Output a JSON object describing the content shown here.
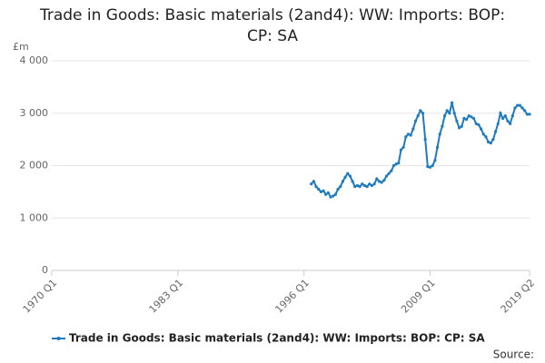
{
  "chart_data": {
    "type": "line",
    "title": "Trade in Goods: Basic materials (2and4): WW: Imports: BOP: CP: SA",
    "y_unit": "£m",
    "source": "Source:",
    "categories": [
      "1970 Q1",
      null,
      null,
      null,
      null,
      null,
      null,
      null,
      null,
      null,
      null,
      null,
      null,
      null,
      null,
      null,
      null,
      null,
      null,
      null,
      null,
      null,
      null,
      null,
      null,
      null,
      null,
      null,
      null,
      null,
      null,
      null,
      null,
      null,
      null,
      null,
      null,
      null,
      null,
      null,
      null,
      null,
      null,
      null,
      null,
      null,
      null,
      null,
      null,
      null,
      null,
      null,
      "1983 Q1",
      null,
      null,
      null,
      null,
      null,
      null,
      null,
      null,
      null,
      null,
      null,
      null,
      null,
      null,
      null,
      null,
      null,
      null,
      null,
      null,
      null,
      null,
      null,
      null,
      null,
      null,
      null,
      null,
      null,
      null,
      null,
      null,
      null,
      null,
      null,
      null,
      null,
      null,
      null,
      null,
      null,
      null,
      null,
      null,
      null,
      null,
      null,
      null,
      null,
      null,
      null,
      "1996 Q1",
      null,
      null,
      null,
      null,
      null,
      null,
      null,
      null,
      null,
      null,
      null,
      null,
      null,
      null,
      null,
      null,
      null,
      null,
      null,
      null,
      null,
      null,
      null,
      null,
      null,
      null,
      null,
      null,
      null,
      null,
      null,
      null,
      null,
      null,
      null,
      null,
      null,
      null,
      null,
      null,
      null,
      null,
      null,
      null,
      null,
      null,
      null,
      null,
      null,
      null,
      null,
      "2009 Q1",
      null,
      null,
      null,
      null,
      null,
      null,
      null,
      null,
      null,
      null,
      null,
      null,
      null,
      null,
      null,
      null,
      null,
      null,
      null,
      null,
      null,
      null,
      null,
      null,
      null,
      null,
      null,
      null,
      null,
      null,
      null,
      null,
      null,
      null,
      null,
      null,
      null,
      null,
      null,
      null,
      "2019 Q2"
    ],
    "series": [
      {
        "name": "Trade in Goods: Basic materials (2and4): WW: Imports: BOP: CP: SA",
        "color": "#1f7bbf",
        "values": [
          null,
          null,
          null,
          null,
          null,
          null,
          null,
          null,
          null,
          null,
          null,
          null,
          null,
          null,
          null,
          null,
          null,
          null,
          null,
          null,
          null,
          null,
          null,
          null,
          null,
          null,
          null,
          null,
          null,
          null,
          null,
          null,
          null,
          null,
          null,
          null,
          null,
          null,
          null,
          null,
          null,
          null,
          null,
          null,
          null,
          null,
          null,
          null,
          null,
          null,
          null,
          null,
          null,
          null,
          null,
          null,
          null,
          null,
          null,
          null,
          null,
          null,
          null,
          null,
          null,
          null,
          null,
          null,
          null,
          null,
          null,
          null,
          null,
          null,
          null,
          null,
          null,
          null,
          null,
          null,
          null,
          null,
          null,
          null,
          null,
          null,
          null,
          null,
          null,
          null,
          null,
          null,
          null,
          null,
          null,
          null,
          null,
          null,
          null,
          null,
          null,
          null,
          null,
          null,
          null,
          null,
          null,
          1650,
          1700,
          1600,
          1550,
          1500,
          1520,
          1450,
          1480,
          1400,
          1420,
          1450,
          1550,
          1600,
          1700,
          1780,
          1850,
          1800,
          1700,
          1600,
          1620,
          1600,
          1650,
          1620,
          1600,
          1650,
          1620,
          1650,
          1750,
          1700,
          1680,
          1720,
          1800,
          1850,
          1900,
          2000,
          2030,
          2050,
          2300,
          2350,
          2550,
          2600,
          2580,
          2700,
          2850,
          2950,
          3050,
          3000,
          2500,
          1980,
          1970,
          2000,
          2100,
          2350,
          2600,
          2750,
          2950,
          3050,
          3000,
          3200,
          3000,
          2850,
          2720,
          2750,
          2900,
          2880,
          2950,
          2930,
          2900,
          2800,
          2780,
          2700,
          2600,
          2550,
          2450,
          2430,
          2500,
          2650,
          2800,
          3000,
          2900,
          2950,
          2850,
          2800,
          2950,
          3100,
          3150,
          3150,
          3100,
          3050,
          2980,
          2980
        ]
      }
    ],
    "ylim": [
      0,
      4000
    ],
    "yticks": [
      0,
      {
        "value": 1000,
        "label": "1 000"
      },
      {
        "value": 2000,
        "label": "2 000"
      },
      {
        "value": 3000,
        "label": "3 000"
      },
      {
        "value": 4000,
        "label": "4 000"
      }
    ],
    "grid": true,
    "legend": "bottom"
  }
}
